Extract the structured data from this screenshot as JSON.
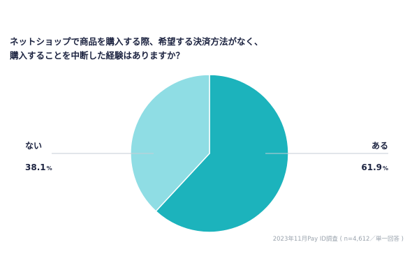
{
  "title_lines": [
    "ネットショップで商品を購入する際、希望する決済方法がなく、",
    "購入することを中断した経験はありますか？"
  ],
  "source": "2023年11月Pay ID調査 ( n=4,612／単一回答 )",
  "colors": {
    "aru": "#1cb3bc",
    "nai": "#8fdde4",
    "leader": "#c4cdd4",
    "text": "#1c2340"
  },
  "chart_data": {
    "type": "pie",
    "title": "ネットショップで商品を購入する際、希望する決済方法がなく、購入することを中断した経験はありますか？",
    "unit": "%",
    "slices": [
      {
        "label": "ある",
        "value": 61.9,
        "display": "61.9",
        "color": "#1cb3bc"
      },
      {
        "label": "ない",
        "value": 38.1,
        "display": "38.1",
        "color": "#8fdde4"
      }
    ],
    "start_angle_deg": 0,
    "direction": "clockwise",
    "legend": "none"
  }
}
